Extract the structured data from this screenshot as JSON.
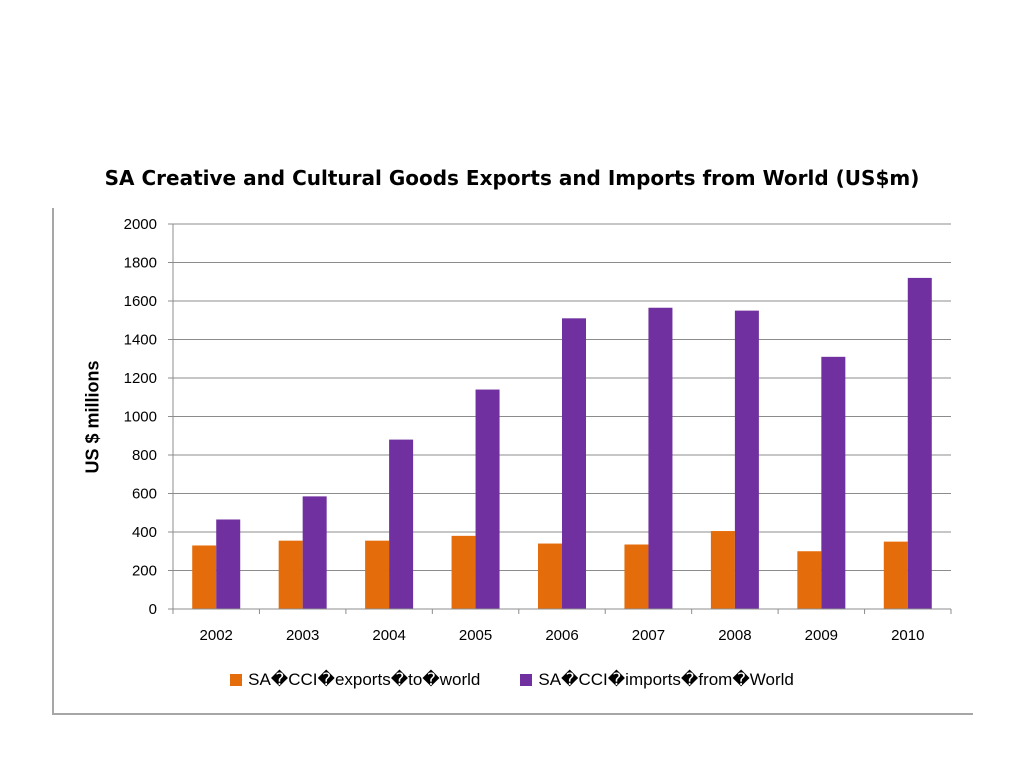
{
  "chart_data": {
    "type": "bar",
    "title": "SA Creative and Cultural Goods Exports and Imports from World (US$m)",
    "xlabel": "",
    "ylabel": "US $ millions",
    "ylim": [
      0,
      2000
    ],
    "yticks": [
      0,
      200,
      400,
      600,
      800,
      1000,
      1200,
      1400,
      1600,
      1800,
      2000
    ],
    "grid": true,
    "legend_position": "bottom",
    "categories": [
      "2002",
      "2003",
      "2004",
      "2005",
      "2006",
      "2007",
      "2008",
      "2009",
      "2010"
    ],
    "series": [
      {
        "name": "SA�CCI�exports�to�world",
        "color": "#e46c0a",
        "values": [
          330,
          355,
          355,
          380,
          340,
          335,
          405,
          300,
          350
        ]
      },
      {
        "name": "SA�CCI�imports�from�World",
        "color": "#7030a0",
        "values": [
          465,
          585,
          880,
          1140,
          1510,
          1565,
          1550,
          1310,
          1720
        ]
      }
    ]
  }
}
